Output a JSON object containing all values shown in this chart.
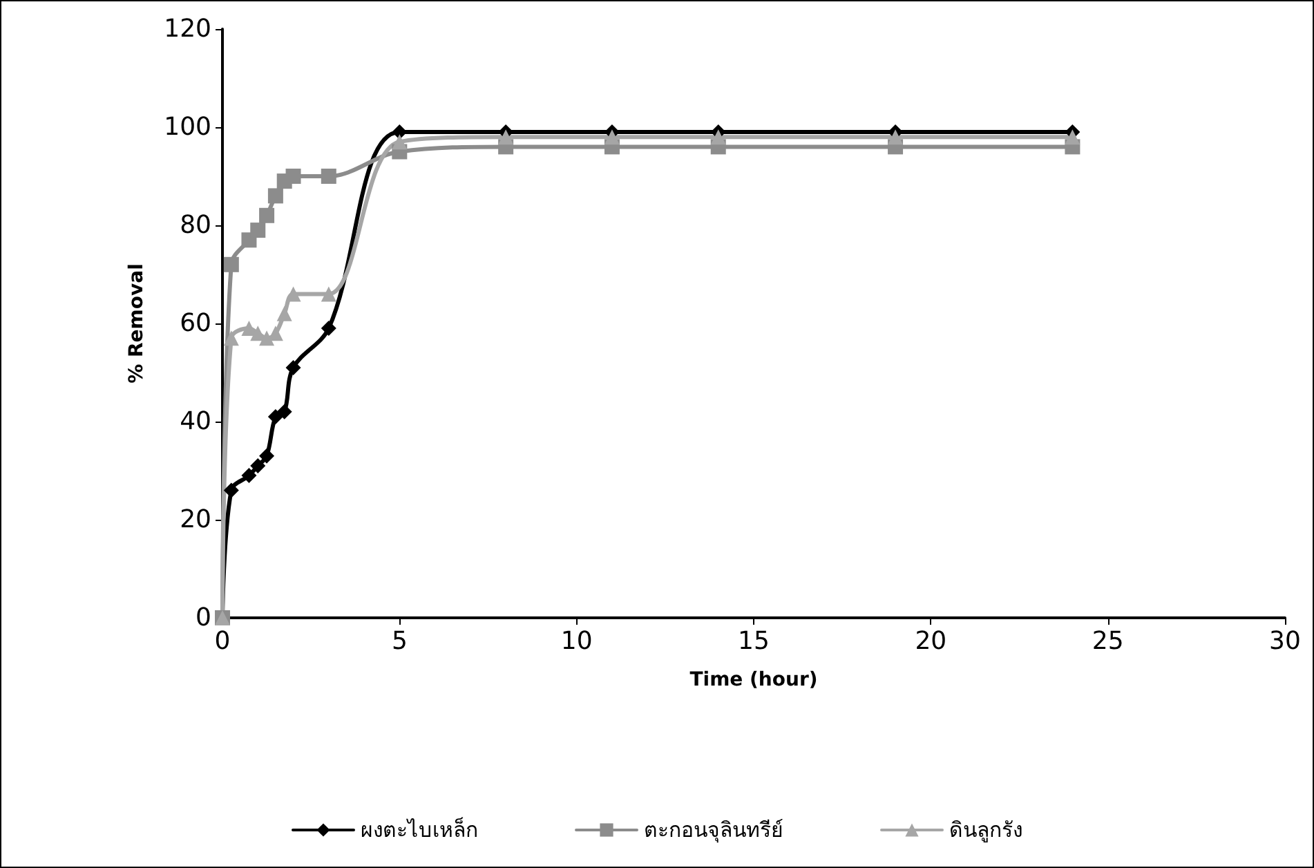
{
  "chart_data": {
    "type": "line",
    "xlabel": "Time (hour)",
    "ylabel": "% Removal",
    "x": [
      0,
      0.25,
      0.75,
      1,
      1.25,
      1.5,
      1.75,
      2,
      3,
      5,
      8,
      11,
      14,
      19,
      24
    ],
    "xlim": [
      0,
      30
    ],
    "xticks": [
      0,
      5,
      10,
      15,
      20,
      25,
      30
    ],
    "ylim": [
      0,
      120
    ],
    "yticks": [
      0,
      20,
      40,
      60,
      80,
      100,
      120
    ],
    "series": [
      {
        "name": "ผงตะไบเหล็ก",
        "color": "#000000",
        "marker": "diamond",
        "values": [
          0,
          26,
          29,
          31,
          33,
          41,
          42,
          51,
          59,
          99,
          99,
          99,
          99,
          99,
          99
        ]
      },
      {
        "name": "ตะกอนจุลินทรีย์",
        "color": "#8c8c8c",
        "marker": "square",
        "values": [
          0,
          72,
          77,
          79,
          82,
          86,
          89,
          90,
          90,
          95,
          96,
          96,
          96,
          96,
          96
        ]
      },
      {
        "name": "ดินลูกรัง",
        "color": "#a6a6a6",
        "marker": "triangle",
        "values": [
          0,
          57,
          59,
          58,
          57,
          58,
          62,
          66,
          66,
          97,
          98,
          98,
          98,
          98,
          98
        ]
      }
    ],
    "legend": "bottom",
    "grid": false
  }
}
